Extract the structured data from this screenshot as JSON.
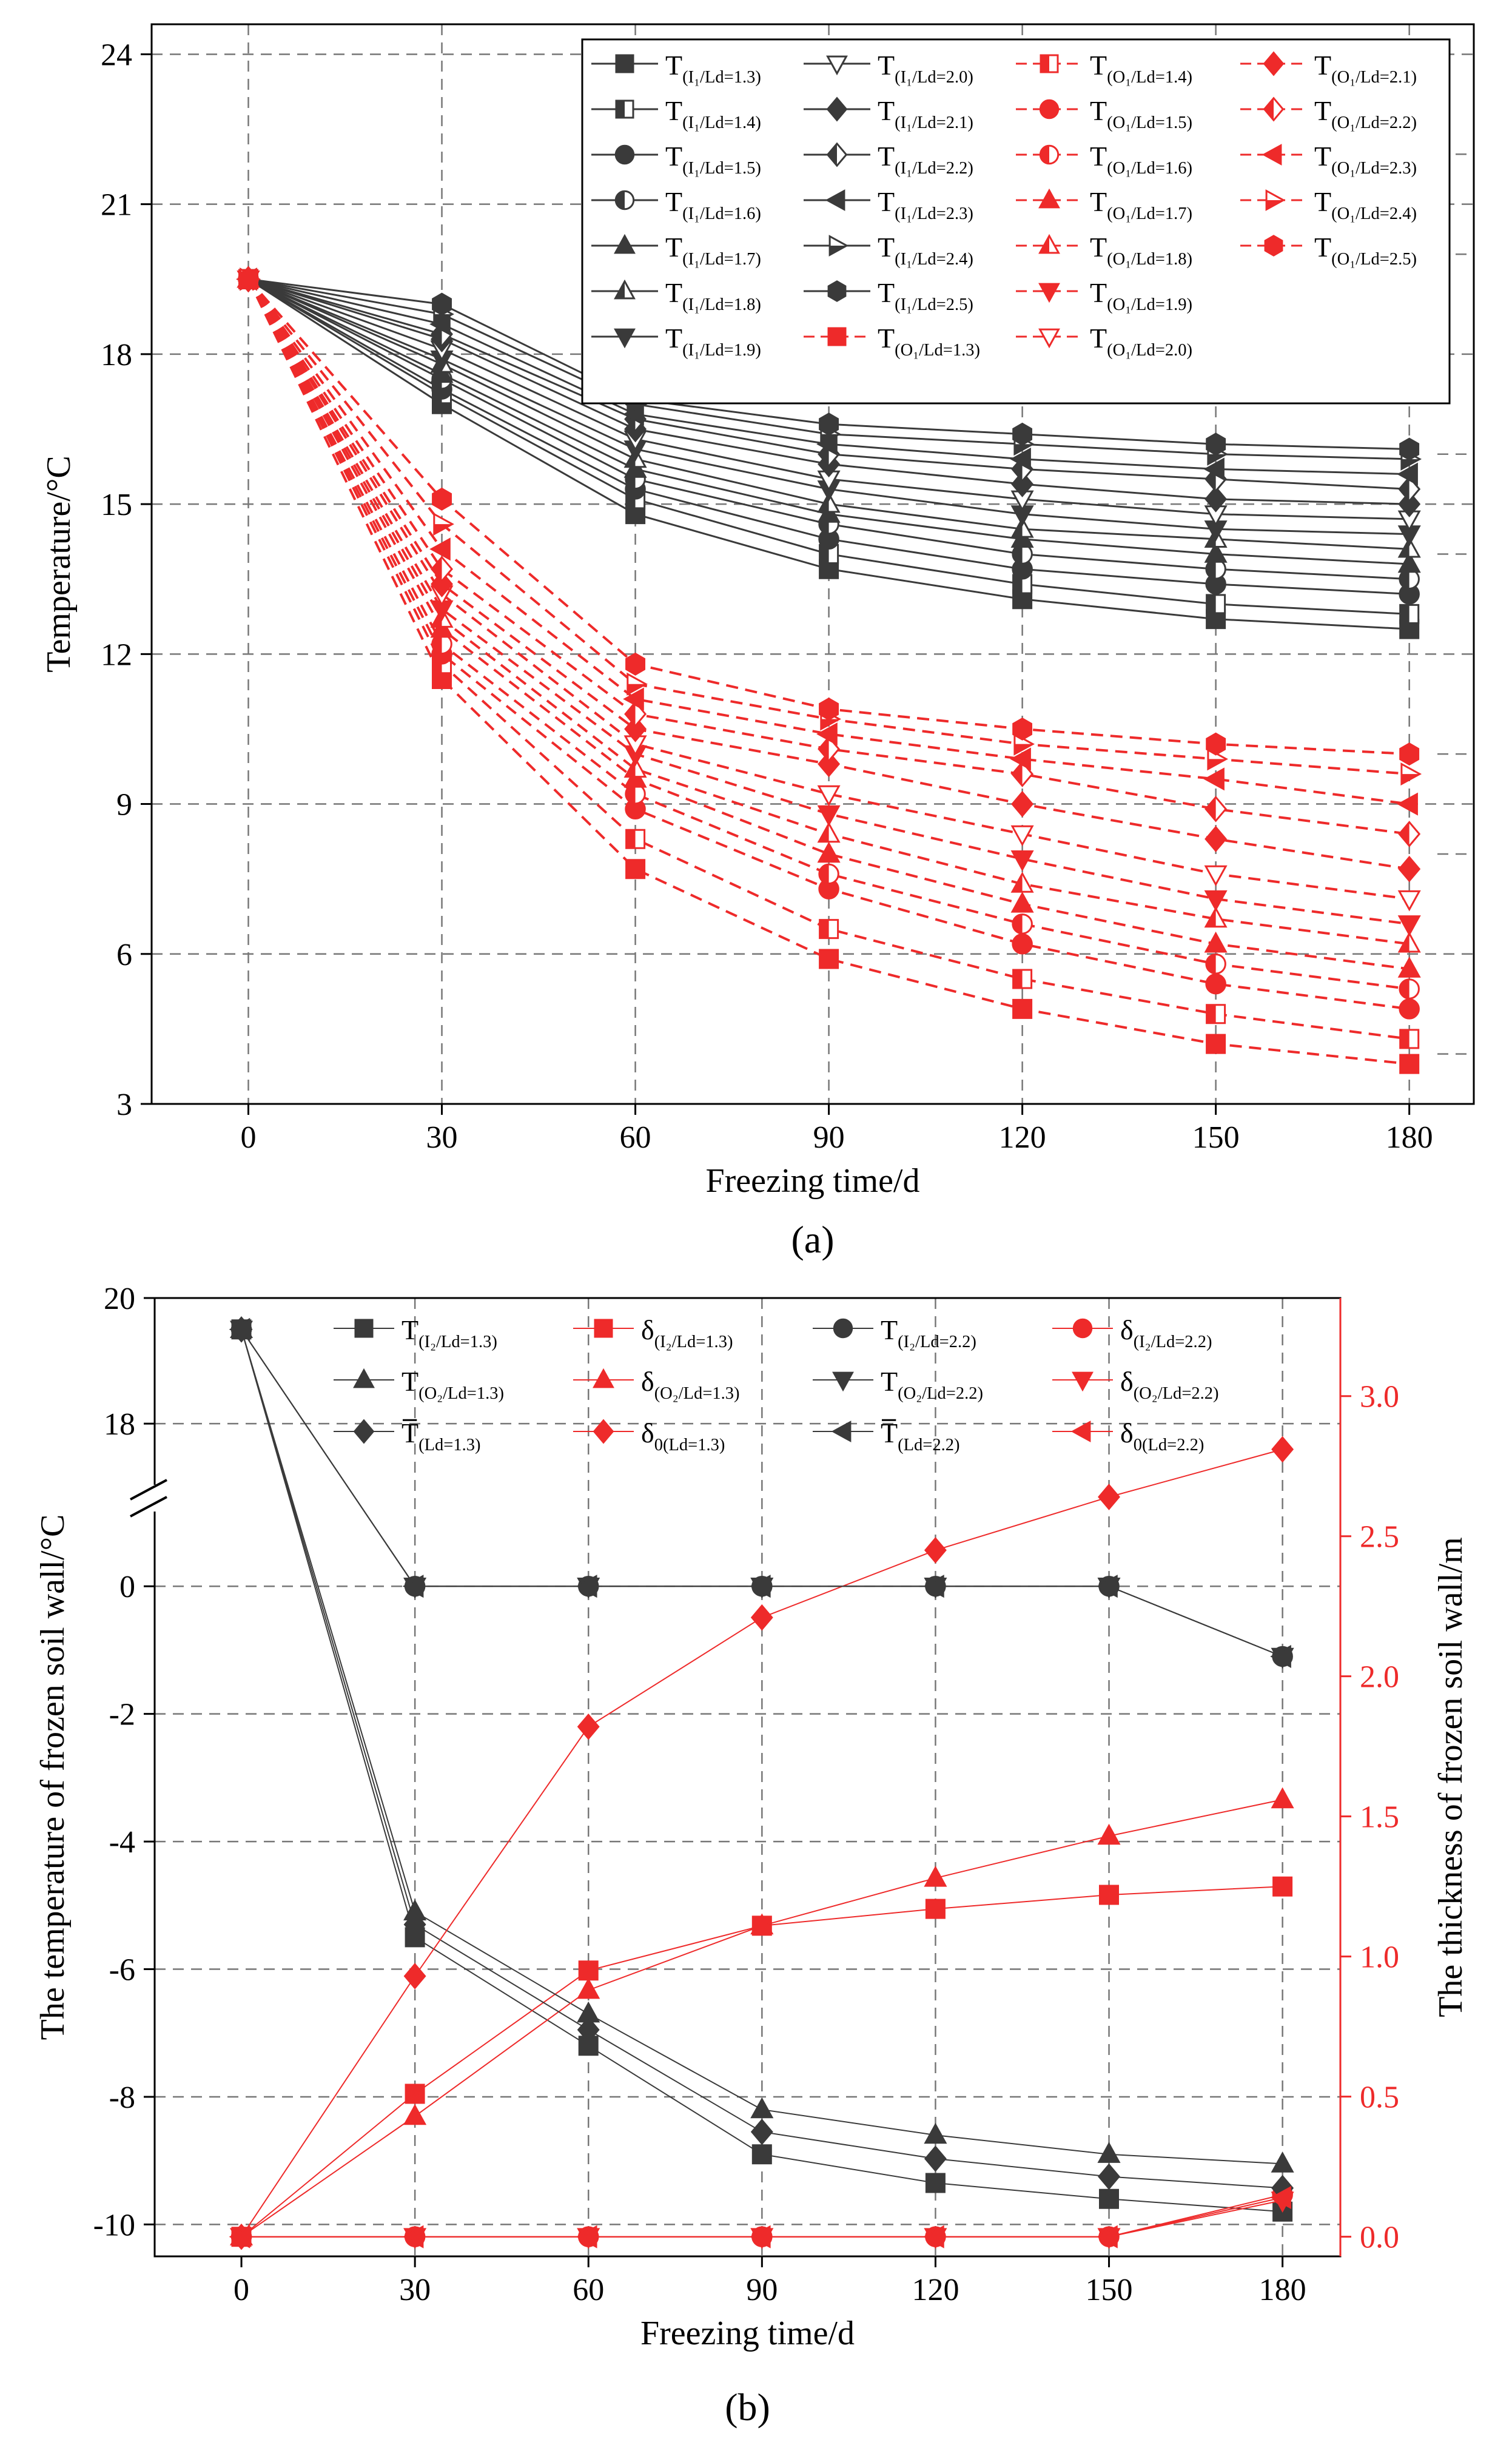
{
  "colors": {
    "black_series": "#3a3a3a",
    "red_series": "#ee2a2a",
    "axis": "#000000",
    "grid": "#777777",
    "right_axis": "#ee2a2a"
  },
  "panels": [
    {
      "caption": "(a)",
      "chart_data": {
        "type": "line",
        "xlabel": "Freezing time/d",
        "ylabel": "Temperature/°C",
        "x": [
          0,
          30,
          60,
          90,
          120,
          150,
          180
        ],
        "xlim": [
          -15,
          190
        ],
        "ylim": [
          3,
          24.6
        ],
        "xticks": [
          "0",
          "30",
          "60",
          "90",
          "120",
          "150",
          "180"
        ],
        "yticks": [
          "3",
          "6",
          "9",
          "12",
          "15",
          "18",
          "21",
          "24"
        ],
        "grid": "dashed at every tick",
        "legend_position": "top-right",
        "series": [
          {
            "name": "T(I1/Ld=1.3)",
            "label_main": "T",
            "label_sub": "(I₁/L_d=1.3)",
            "group": "black",
            "marker": "square",
            "values": [
              19.5,
              17.0,
              14.8,
              13.7,
              13.1,
              12.7,
              12.5
            ]
          },
          {
            "name": "T(I1/Ld=1.4)",
            "label_main": "T",
            "label_sub": "(I₁/L_d=1.4)",
            "group": "black",
            "marker": "square-half",
            "values": [
              19.5,
              17.2,
              15.1,
              14.0,
              13.4,
              13.0,
              12.8
            ]
          },
          {
            "name": "T(I1/Ld=1.5)",
            "label_main": "T",
            "label_sub": "(I₁/L_d=1.5)",
            "group": "black",
            "marker": "circle",
            "values": [
              19.5,
              17.3,
              15.3,
              14.3,
              13.7,
              13.4,
              13.2
            ]
          },
          {
            "name": "T(I1/Ld=1.6)",
            "label_main": "T",
            "label_sub": "(I₁/L_d=1.6)",
            "group": "black",
            "marker": "circle-half",
            "values": [
              19.5,
              17.5,
              15.5,
              14.6,
              14.0,
              13.7,
              13.5
            ]
          },
          {
            "name": "T(I1/Ld=1.7)",
            "label_main": "T",
            "label_sub": "(I₁/L_d=1.7)",
            "group": "black",
            "marker": "triangle-up",
            "values": [
              19.5,
              17.6,
              15.7,
              14.8,
              14.3,
              14.0,
              13.8
            ]
          },
          {
            "name": "T(I1/Ld=1.8)",
            "label_main": "T",
            "label_sub": "(I₁/L_d=1.8)",
            "group": "black",
            "marker": "triangle-up-half",
            "values": [
              19.5,
              17.8,
              15.9,
              15.0,
              14.5,
              14.3,
              14.1
            ]
          },
          {
            "name": "T(I1/Ld=1.9)",
            "label_main": "T",
            "label_sub": "(I₁/L_d=1.9)",
            "group": "black",
            "marker": "triangle-down",
            "values": [
              19.5,
              17.9,
              16.1,
              15.3,
              14.8,
              14.5,
              14.4
            ]
          },
          {
            "name": "T(I1/Ld=2.0)",
            "label_main": "T",
            "label_sub": "(I₁/L_d=2.0)",
            "group": "black",
            "marker": "triangle-down-open",
            "values": [
              19.5,
              18.1,
              16.3,
              15.5,
              15.1,
              14.8,
              14.7
            ]
          },
          {
            "name": "T(I1/Ld=2.1)",
            "label_main": "T",
            "label_sub": "(I₁/L_d=2.1)",
            "group": "black",
            "marker": "diamond",
            "values": [
              19.5,
              18.3,
              16.5,
              15.8,
              15.4,
              15.1,
              15.0
            ]
          },
          {
            "name": "T(I1/Ld=2.2)",
            "label_main": "T",
            "label_sub": "(I₁/L_d=2.2)",
            "group": "black",
            "marker": "diamond-half",
            "values": [
              19.5,
              18.4,
              16.7,
              16.0,
              15.7,
              15.5,
              15.3
            ]
          },
          {
            "name": "T(I1/Ld=2.3)",
            "label_main": "T",
            "label_sub": "(I₁/L_d=2.3)",
            "group": "black",
            "marker": "triangle-left",
            "values": [
              19.5,
              18.6,
              16.8,
              16.2,
              15.9,
              15.7,
              15.6
            ]
          },
          {
            "name": "T(I1/Ld=2.4)",
            "label_main": "T",
            "label_sub": "(I₁/L_d=2.4)",
            "group": "black",
            "marker": "triangle-right-half",
            "values": [
              19.5,
              18.8,
              17.0,
              16.4,
              16.2,
              16.0,
              15.9
            ]
          },
          {
            "name": "T(I1/Ld=2.5)",
            "label_main": "T",
            "label_sub": "(I₁/L_d=2.5)",
            "group": "black",
            "marker": "hexagon",
            "values": [
              19.5,
              19.0,
              17.1,
              16.6,
              16.4,
              16.2,
              16.1
            ]
          },
          {
            "name": "T(O1/Ld=1.3)",
            "label_main": "T",
            "label_sub": "(O₁/L_d=1.3)",
            "group": "red",
            "marker": "square",
            "values": [
              19.5,
              11.5,
              7.7,
              5.9,
              4.9,
              4.2,
              3.8
            ]
          },
          {
            "name": "T(O1/Ld=1.4)",
            "label_main": "T",
            "label_sub": "(O₁/L_d=1.4)",
            "group": "red",
            "marker": "square-half",
            "values": [
              19.5,
              11.8,
              8.3,
              6.5,
              5.5,
              4.8,
              4.3
            ]
          },
          {
            "name": "T(O1/Ld=1.5)",
            "label_main": "T",
            "label_sub": "(O₁/L_d=1.5)",
            "group": "red",
            "marker": "circle",
            "values": [
              19.5,
              12.0,
              8.9,
              7.3,
              6.2,
              5.4,
              4.9
            ]
          },
          {
            "name": "T(O1/Ld=1.6)",
            "label_main": "T",
            "label_sub": "(O₁/L_d=1.6)",
            "group": "red",
            "marker": "circle-half",
            "values": [
              19.5,
              12.2,
              9.2,
              7.6,
              6.6,
              5.8,
              5.3
            ]
          },
          {
            "name": "T(O1/Ld=1.7)",
            "label_main": "T",
            "label_sub": "(O₁/L_d=1.7)",
            "group": "red",
            "marker": "triangle-up",
            "values": [
              19.5,
              12.5,
              9.5,
              8.0,
              7.0,
              6.2,
              5.7
            ]
          },
          {
            "name": "T(O1/Ld=1.8)",
            "label_main": "T",
            "label_sub": "(O₁/L_d=1.8)",
            "group": "red",
            "marker": "triangle-up-half",
            "values": [
              19.5,
              12.7,
              9.7,
              8.4,
              7.4,
              6.7,
              6.2
            ]
          },
          {
            "name": "T(O1/Ld=1.9)",
            "label_main": "T",
            "label_sub": "(O₁/L_d=1.9)",
            "group": "red",
            "marker": "triangle-down",
            "values": [
              19.5,
              12.9,
              10.0,
              8.8,
              7.9,
              7.1,
              6.6
            ]
          },
          {
            "name": "T(O1/Ld=2.0)",
            "label_main": "T",
            "label_sub": "(O₁/L_d=2.0)",
            "group": "red",
            "marker": "triangle-down-open",
            "values": [
              19.5,
              13.2,
              10.2,
              9.2,
              8.4,
              7.6,
              7.1
            ]
          },
          {
            "name": "T(O1/Ld=2.1)",
            "label_main": "T",
            "label_sub": "(O₁/L_d=2.1)",
            "group": "red",
            "marker": "diamond",
            "values": [
              19.5,
              13.4,
              10.5,
              9.8,
              9.0,
              8.3,
              7.7
            ]
          },
          {
            "name": "T(O1/Ld=2.2)",
            "label_main": "T",
            "label_sub": "(O₁/L_d=2.2)",
            "group": "red",
            "marker": "diamond-half",
            "values": [
              19.5,
              13.7,
              10.8,
              10.1,
              9.6,
              8.9,
              8.4
            ]
          },
          {
            "name": "T(O1/Ld=2.3)",
            "label_main": "T",
            "label_sub": "(O₁/L_d=2.3)",
            "group": "red",
            "marker": "triangle-left",
            "values": [
              19.5,
              14.1,
              11.1,
              10.4,
              9.9,
              9.5,
              9.0
            ]
          },
          {
            "name": "T(O1/Ld=2.4)",
            "label_main": "T",
            "label_sub": "(O₁/L_d=2.4)",
            "group": "red",
            "marker": "triangle-right-half",
            "values": [
              19.5,
              14.6,
              11.4,
              10.7,
              10.2,
              9.9,
              9.6
            ]
          },
          {
            "name": "T(O1/Ld=2.5)",
            "label_main": "T",
            "label_sub": "(O₁/L_d=2.5)",
            "group": "red",
            "marker": "hexagon",
            "values": [
              19.5,
              15.1,
              11.8,
              10.9,
              10.5,
              10.2,
              10.0
            ]
          }
        ]
      }
    },
    {
      "caption": "(b)",
      "chart_data": {
        "type": "line",
        "xlabel": "Freezing time/d",
        "ylabel": "The temperature of frozen soil wall/°C",
        "y2label": "The thickness of frozen soil wall/m",
        "x": [
          0,
          30,
          60,
          90,
          120,
          150,
          180
        ],
        "xlim": [
          -15,
          190
        ],
        "ylim_lower": [
          -10.5,
          1.0
        ],
        "ylim_upper": [
          17.2,
          20
        ],
        "y_axis_break": true,
        "y2lim": [
          -0.07,
          3.35
        ],
        "xticks": [
          "0",
          "30",
          "60",
          "90",
          "120",
          "150",
          "180"
        ],
        "yticks": [
          "-10",
          "-8",
          "-6",
          "-4",
          "-2",
          "0",
          "18",
          "20"
        ],
        "y2ticks": [
          "0.0",
          "0.5",
          "1.0",
          "1.5",
          "2.0",
          "2.5",
          "3.0"
        ],
        "grid": "dashed at every tick",
        "legend_position": "top",
        "series": [
          {
            "name": "T(I2/Ld=1.3)",
            "label_main": "T",
            "label_sub": "(I₂/L_d=1.3)",
            "axis": "left",
            "group": "black",
            "marker": "square",
            "values": [
              19.5,
              -5.5,
              -7.2,
              -8.9,
              -9.35,
              -9.6,
              -9.8
            ]
          },
          {
            "name": "δ(I2/Ld=1.3)",
            "label_main": "δ",
            "label_sub": "(I₂/L_d=1.3)",
            "axis": "right",
            "group": "red",
            "marker": "square",
            "values": [
              0,
              0.51,
              0.95,
              1.11,
              1.17,
              1.22,
              1.25
            ]
          },
          {
            "name": "T(I2/Ld=2.2)",
            "label_main": "T",
            "label_sub": "(I₂/L_d=2.2)",
            "axis": "left",
            "group": "black",
            "marker": "circle",
            "values": [
              19.5,
              0,
              0,
              0,
              0,
              0,
              -1.1
            ]
          },
          {
            "name": "δ(I2/Ld=2.2)",
            "label_main": "δ",
            "label_sub": "(I₂/L_d=2.2)",
            "axis": "right",
            "group": "red",
            "marker": "circle",
            "values": [
              0,
              0,
              0,
              0,
              0,
              0,
              0.15
            ]
          },
          {
            "name": "T(O2/Ld=1.3)",
            "label_main": "T",
            "label_sub": "(O₂/L_d=1.3)",
            "axis": "left",
            "group": "black",
            "marker": "triangle-up",
            "values": [
              19.5,
              -5.1,
              -6.7,
              -8.2,
              -8.6,
              -8.9,
              -9.05
            ]
          },
          {
            "name": "δ(O2/Ld=1.3)",
            "label_main": "δ",
            "label_sub": "(O₂/L_d=1.3)",
            "axis": "right",
            "group": "red",
            "marker": "triangle-up",
            "values": [
              0,
              0.43,
              0.88,
              1.11,
              1.28,
              1.43,
              1.56
            ]
          },
          {
            "name": "T(O2/Ld=2.2)",
            "label_main": "T",
            "label_sub": "(O₂/L_d=2.2)",
            "axis": "left",
            "group": "black",
            "marker": "triangle-down",
            "values": [
              19.5,
              0,
              0,
              0,
              0,
              0,
              -1.1
            ]
          },
          {
            "name": "δ(O2/Ld=2.2)",
            "label_main": "δ",
            "label_sub": "(O₂/L_d=2.2)",
            "axis": "right",
            "group": "red",
            "marker": "triangle-down",
            "values": [
              0,
              0,
              0,
              0,
              0,
              0,
              0.13
            ]
          },
          {
            "name": "T̄(Ld=1.3)",
            "label_main": "T",
            "overbar": true,
            "label_sub": "(L_d=1.3)",
            "axis": "left",
            "group": "black",
            "marker": "diamond",
            "values": [
              19.5,
              -5.3,
              -6.95,
              -8.55,
              -8.97,
              -9.25,
              -9.43
            ]
          },
          {
            "name": "δ0(Ld=1.3)",
            "label_main": "δ",
            "label_sub": "0(L_d=1.3)",
            "axis": "right",
            "group": "red",
            "marker": "diamond",
            "values": [
              0,
              0.93,
              1.82,
              2.21,
              2.45,
              2.64,
              2.81
            ]
          },
          {
            "name": "T̄(Ld=2.2)",
            "label_main": "T",
            "overbar": true,
            "label_sub": "(L_d=2.2)",
            "axis": "left",
            "group": "black",
            "marker": "triangle-left",
            "values": [
              19.5,
              0,
              0,
              0,
              0,
              0,
              -1.1
            ]
          },
          {
            "name": "δ0(Ld=2.2)",
            "label_main": "δ",
            "label_sub": "0(L_d=2.2)",
            "axis": "right",
            "group": "red",
            "marker": "triangle-left",
            "values": [
              0,
              0,
              0,
              0,
              0,
              0,
              0.14
            ]
          }
        ]
      }
    }
  ]
}
